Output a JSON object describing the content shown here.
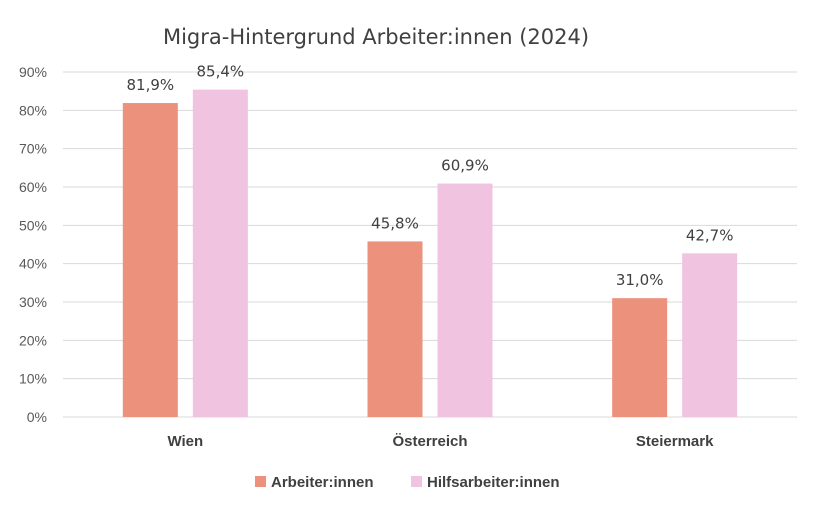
{
  "chart_data": {
    "type": "bar",
    "title": "Migra-Hintergrund Arbeiter:innen (2024)",
    "categories": [
      "Wien",
      "Österreich",
      "Steiermark"
    ],
    "series": [
      {
        "name": "Arbeiter:innen",
        "color": "#ec917b",
        "values": [
          81.9,
          45.8,
          31.0
        ],
        "labels": [
          "81,9%",
          "45,8%",
          "31,0%"
        ]
      },
      {
        "name": "Hilfsarbeiter:innen",
        "color": "#f0c3e0",
        "values": [
          85.4,
          60.9,
          42.7
        ],
        "labels": [
          "85,4%",
          "60,9%",
          "42,7%"
        ]
      }
    ],
    "ylim": [
      0,
      90
    ],
    "yticks": [
      0,
      10,
      20,
      30,
      40,
      50,
      60,
      70,
      80,
      90
    ],
    "ytick_labels": [
      "0%",
      "10%",
      "20%",
      "30%",
      "40%",
      "50%",
      "60%",
      "70%",
      "80%",
      "90%"
    ],
    "grid": true,
    "legend_position": "bottom"
  }
}
